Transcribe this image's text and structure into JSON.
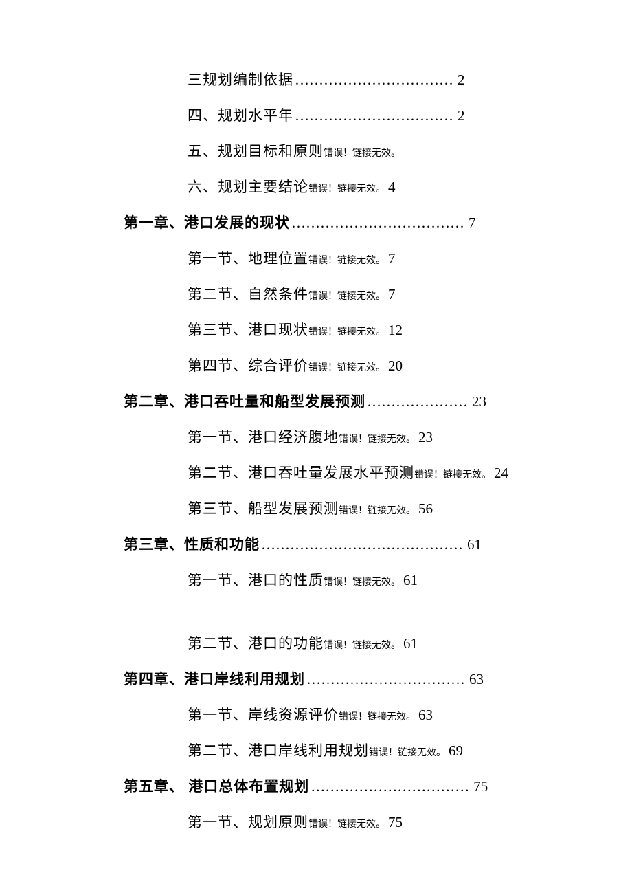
{
  "error_text": "错误！链接无效。",
  "toc": [
    {
      "type": "section",
      "label": "三规划编制依据",
      "dots": "……………………………",
      "page": "2"
    },
    {
      "type": "section",
      "label": "四、规划水平年",
      "dots": "……………………………",
      "page": "2"
    },
    {
      "type": "section",
      "label": "五、规划目标和原则",
      "error": true,
      "page": ""
    },
    {
      "type": "section",
      "label": "六、规划主要结论",
      "error": true,
      "page": "4"
    },
    {
      "type": "chapter",
      "label": "第一章、港口发展的现状",
      "dots": " ………………………………",
      "page": "7"
    },
    {
      "type": "section",
      "label": "第一节、地理位置",
      "error": true,
      "sp": " ",
      "page": "7"
    },
    {
      "type": "section",
      "label": "第二节、自然条件",
      "error": true,
      "sp": " ",
      "page": "7"
    },
    {
      "type": "section",
      "label": "第三节、港口现状",
      "error": true,
      "sp": " ",
      "page": "12"
    },
    {
      "type": "section",
      "label": "第四节、综合评价",
      "error": true,
      "sp": " ",
      "page": "20"
    },
    {
      "type": "chapter",
      "label": "第二章、港口吞吐量和船型发展预测",
      "dots": " …………………",
      "page": "23"
    },
    {
      "type": "section",
      "label": "第一节、港口经济腹地",
      "error": true,
      "sp": " ",
      "page": "23"
    },
    {
      "type": "section",
      "label": "第二节、港口吞吐量发展水平预测",
      "error": true,
      "sp": " ",
      "page": "24"
    },
    {
      "type": "section",
      "label": "第三节、船型发展预测",
      "error": true,
      "sp": " ",
      "page": "56"
    },
    {
      "type": "chapter",
      "label": "第三章、性质和功能",
      "dots": " ……………………………………",
      "page": "61"
    },
    {
      "type": "section",
      "label": "第一节、港口的性质",
      "error": true,
      "sp": " ",
      "page": "61"
    },
    {
      "type": "gap"
    },
    {
      "type": "section",
      "label": "第二节、港口的功能",
      "error": true,
      "sp": " ",
      "page": "61"
    },
    {
      "type": "chapter",
      "label": "第四章、港口岸线利用规划",
      "dots": " ……………………………",
      "page": "63"
    },
    {
      "type": "section",
      "label": "第一节、岸线资源评价",
      "error": true,
      "sp": " ",
      "page": "63"
    },
    {
      "type": "section",
      "label": "第二节、港口岸线利用规划",
      "error": true,
      "sp": " ",
      "page": "69"
    },
    {
      "type": "chapter",
      "label": "第五章、 港口总体布置规划",
      "dots": "  ……………………………",
      "page": "75"
    },
    {
      "type": "section",
      "label": "第一节、规划原则",
      "error": true,
      "sp": " ",
      "page": "75"
    }
  ]
}
